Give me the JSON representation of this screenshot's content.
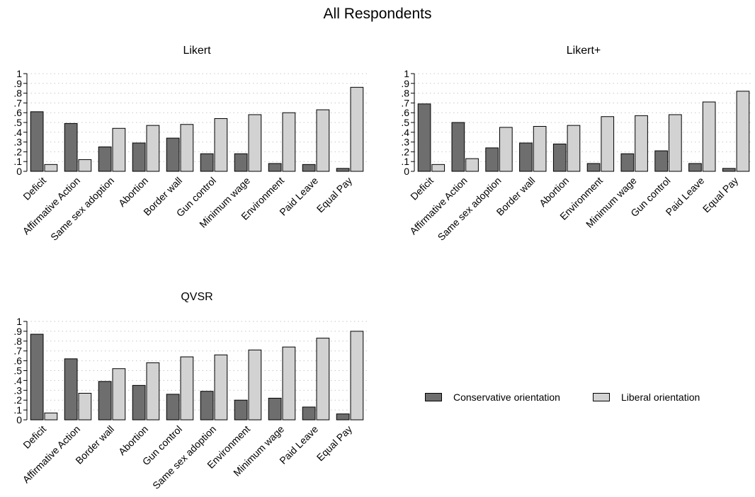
{
  "figure_title": "All Respondents",
  "legend": [
    {
      "label": "Conservative orientation",
      "color": "#6e6e6e"
    },
    {
      "label": "Liberal orientation",
      "color": "#d2d2d2"
    }
  ],
  "chart_data": [
    {
      "type": "bar",
      "title": "Likert",
      "ylim": [
        0,
        1
      ],
      "yticks": [
        "0",
        ".1",
        ".2",
        ".3",
        ".4",
        ".5",
        ".6",
        ".7",
        ".8",
        ".9",
        "1"
      ],
      "grid": true,
      "categories": [
        "Deficit",
        "Affirmative Action",
        "Same sex adoption",
        "Abortion",
        "Border wall",
        "Gun control",
        "Minimum wage",
        "Environment",
        "Paid Leave",
        "Equal Pay"
      ],
      "series": [
        {
          "name": "Conservative orientation",
          "values": [
            0.61,
            0.49,
            0.25,
            0.29,
            0.34,
            0.18,
            0.18,
            0.08,
            0.07,
            0.03
          ]
        },
        {
          "name": "Liberal orientation",
          "values": [
            0.07,
            0.12,
            0.44,
            0.47,
            0.48,
            0.54,
            0.58,
            0.6,
            0.63,
            0.86
          ]
        }
      ]
    },
    {
      "type": "bar",
      "title": "Likert+",
      "ylim": [
        0,
        1
      ],
      "yticks": [
        "0",
        ".1",
        ".2",
        ".3",
        ".4",
        ".5",
        ".6",
        ".7",
        ".8",
        ".9",
        "1"
      ],
      "grid": true,
      "categories": [
        "Deficit",
        "Affirmative Action",
        "Same sex adoption",
        "Border wall",
        "Abortion",
        "Environment",
        "Minimum wage",
        "Gun control",
        "Paid Leave",
        "Equal Pay"
      ],
      "series": [
        {
          "name": "Conservative orientation",
          "values": [
            0.69,
            0.5,
            0.24,
            0.29,
            0.28,
            0.08,
            0.18,
            0.21,
            0.08,
            0.03
          ]
        },
        {
          "name": "Liberal orientation",
          "values": [
            0.07,
            0.13,
            0.45,
            0.46,
            0.47,
            0.56,
            0.57,
            0.58,
            0.71,
            0.82
          ]
        }
      ]
    },
    {
      "type": "bar",
      "title": "QVSR",
      "ylim": [
        0,
        1
      ],
      "yticks": [
        "0",
        ".1",
        ".2",
        ".3",
        ".4",
        ".5",
        ".6",
        ".7",
        ".8",
        ".9",
        "1"
      ],
      "grid": true,
      "categories": [
        "Deficit",
        "Affirmative Action",
        "Border wall",
        "Abortion",
        "Gun control",
        "Same sex adoption",
        "Environment",
        "Minimum wage",
        "Paid Leave",
        "Equal Pay"
      ],
      "series": [
        {
          "name": "Conservative orientation",
          "values": [
            0.87,
            0.62,
            0.39,
            0.35,
            0.26,
            0.29,
            0.2,
            0.22,
            0.13,
            0.06
          ]
        },
        {
          "name": "Liberal orientation",
          "values": [
            0.07,
            0.27,
            0.52,
            0.58,
            0.64,
            0.66,
            0.71,
            0.74,
            0.83,
            0.9
          ]
        }
      ]
    }
  ]
}
